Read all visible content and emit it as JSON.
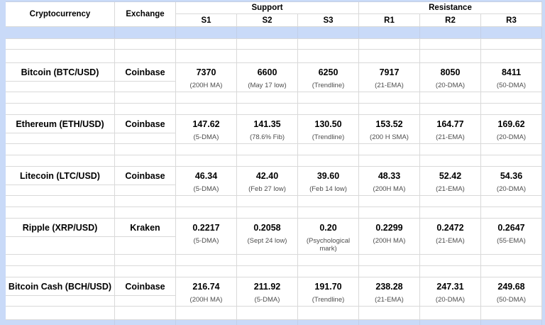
{
  "header": {
    "cryptocurrency": "Cryptocurrency",
    "exchange": "Exchange",
    "support": "Support",
    "resistance": "Resistance",
    "sub_columns": [
      "S1",
      "S2",
      "S3",
      "R1",
      "R2",
      "R3"
    ]
  },
  "colors": {
    "band_blue": "#c9daf8",
    "gridline": "#d9d9d9",
    "note_gray": "#4d4d4d",
    "text": "#000000"
  },
  "rows": [
    {
      "name": "Bitcoin (BTC/USD)",
      "exchange": "Coinbase",
      "cells": [
        {
          "value": "7370",
          "note": "(200H MA)"
        },
        {
          "value": "6600",
          "note": "(May 17 low)"
        },
        {
          "value": "6250",
          "note": "(Trendline)"
        },
        {
          "value": "7917",
          "note": "(21-EMA)"
        },
        {
          "value": "8050",
          "note": "(20-DMA)"
        },
        {
          "value": "8411",
          "note": "(50-DMA)"
        }
      ]
    },
    {
      "name": "Ethereum (ETH/USD)",
      "exchange": "Coinbase",
      "cells": [
        {
          "value": "147.62",
          "note": "(5-DMA)"
        },
        {
          "value": "141.35",
          "note": "(78.6% Fib)"
        },
        {
          "value": "130.50",
          "note": "(Trendline)"
        },
        {
          "value": "153.52",
          "note": "(200 H SMA)"
        },
        {
          "value": "164.77",
          "note": "(21-EMA)"
        },
        {
          "value": "169.62",
          "note": "(20-DMA)"
        }
      ]
    },
    {
      "name": "Litecoin (LTC/USD)",
      "exchange": "Coinbase",
      "cells": [
        {
          "value": "46.34",
          "note": "(5-DMA)"
        },
        {
          "value": "42.40",
          "note": "(Feb 27 low)"
        },
        {
          "value": "39.60",
          "note": "(Feb 14 low)"
        },
        {
          "value": "48.33",
          "note": "(200H MA)"
        },
        {
          "value": "52.42",
          "note": "(21-EMA)"
        },
        {
          "value": "54.36",
          "note": "(20-DMA)"
        }
      ]
    },
    {
      "name": "Ripple (XRP/USD)",
      "exchange": "Kraken",
      "cells": [
        {
          "value": "0.2217",
          "note": "(5-DMA)"
        },
        {
          "value": "0.2058",
          "note": "(Sept 24 low)"
        },
        {
          "value": "0.20",
          "note": "(Psychological mark)"
        },
        {
          "value": "0.2299",
          "note": "(200H MA)"
        },
        {
          "value": "0.2472",
          "note": "(21-EMA)"
        },
        {
          "value": "0.2647",
          "note": "(55-EMA)"
        }
      ]
    },
    {
      "name": "Bitcoin Cash (BCH/USD)",
      "exchange": "Coinbase",
      "cells": [
        {
          "value": "216.74",
          "note": "(200H MA)"
        },
        {
          "value": "211.92",
          "note": "(5-DMA)"
        },
        {
          "value": "191.70",
          "note": "(Trendline)"
        },
        {
          "value": "238.28",
          "note": "(21-EMA)"
        },
        {
          "value": "247.31",
          "note": "(20-DMA)"
        },
        {
          "value": "249.68",
          "note": "(50-DMA)"
        }
      ]
    }
  ]
}
